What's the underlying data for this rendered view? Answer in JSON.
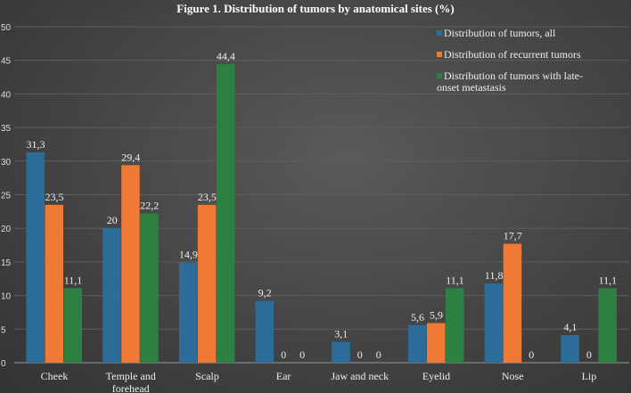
{
  "chart_data": {
    "type": "bar",
    "title": "Figure 1. Distribution of tumors by anatomical sites (%)",
    "categories": [
      "Cheek",
      "Temple and forehead",
      "Scalp",
      "Ear",
      "Jaw and neck",
      "Eyelid",
      "Nose",
      "Lip"
    ],
    "series": [
      {
        "name": "Distribution of tumors, all",
        "color": "#2b6c98",
        "values": [
          31.3,
          20,
          14.9,
          9.2,
          3.1,
          5.6,
          11.8,
          4.1
        ],
        "labels": [
          "31,3",
          "20",
          "14,9",
          "9,2",
          "3,1",
          "5,6",
          "11,8",
          "4,1"
        ]
      },
      {
        "name": "Distribution of recurrent tumors",
        "color": "#f07a35",
        "values": [
          23.5,
          29.4,
          23.5,
          0,
          0,
          5.9,
          17.7,
          0
        ],
        "labels": [
          "23,5",
          "29,4",
          "23,5",
          "0",
          "0",
          "5,9",
          "17,7",
          "0"
        ]
      },
      {
        "name": "Distribution of tumors with late-onset metastasis",
        "color": "#2e7f42",
        "values": [
          11.1,
          22.2,
          44.4,
          0,
          0,
          11.1,
          0,
          11.1
        ],
        "labels": [
          "11,1",
          "22,2",
          "44,4",
          "0",
          "0",
          "11,1",
          "0",
          "11,1"
        ]
      }
    ],
    "ylim": [
      0,
      50
    ],
    "yticks": [
      "0",
      "5",
      "10",
      "15",
      "20",
      "25",
      "30",
      "35",
      "40",
      "45",
      "50"
    ],
    "grid": true,
    "legend": "top-right"
  }
}
